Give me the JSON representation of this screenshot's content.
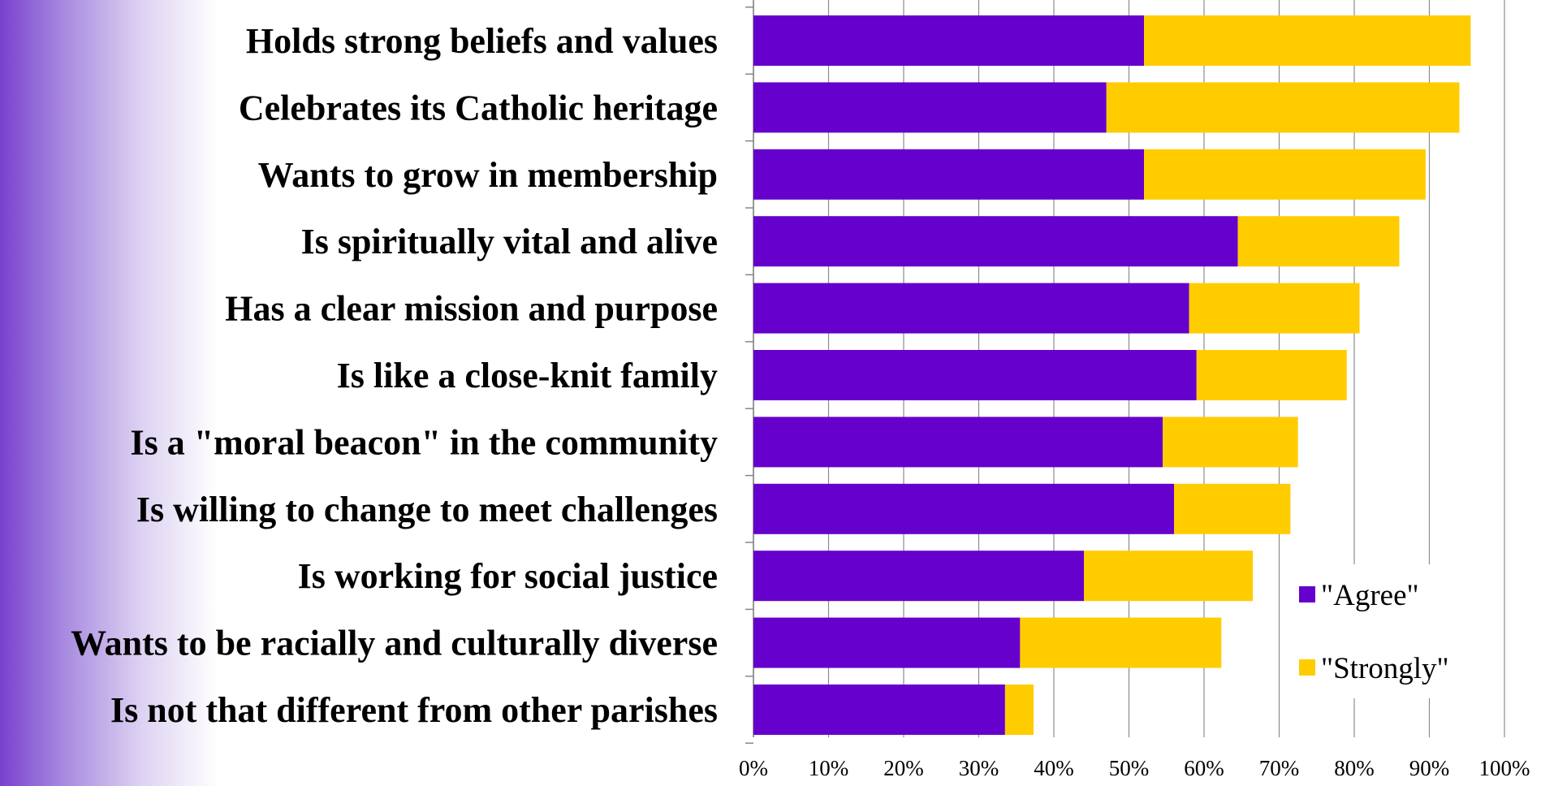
{
  "chart_data": {
    "type": "bar",
    "orientation": "horizontal",
    "stacked": true,
    "categories": [
      "Holds strong beliefs and values",
      "Celebrates its Catholic heritage",
      "Wants to grow in membership",
      "Is spiritually vital and alive",
      "Has a clear mission and purpose",
      "Is like a close-knit family",
      "Is a \"moral beacon\" in the community",
      "Is willing to change to meet challenges",
      "Is working for social justice",
      "Wants to be racially and culturally diverse",
      "Is not that different from other parishes"
    ],
    "series": [
      {
        "name": "\"Agree\"",
        "color": "#6600cc",
        "values": [
          52,
          47,
          52,
          64.5,
          58,
          59,
          54.5,
          56,
          44,
          35.5,
          33.5
        ]
      },
      {
        "name": "\"Strongly\"",
        "color": "#ffcc00",
        "values": [
          43.5,
          47,
          37.5,
          21.5,
          22.7,
          20,
          18,
          15.5,
          22.5,
          26.8,
          3.8
        ]
      }
    ],
    "xlim": [
      0,
      100
    ],
    "xticks": [
      "0%",
      "10%",
      "20%",
      "30%",
      "40%",
      "50%",
      "60%",
      "70%",
      "80%",
      "90%",
      "100%"
    ],
    "grid": true,
    "legend_position": "bottom-right"
  }
}
